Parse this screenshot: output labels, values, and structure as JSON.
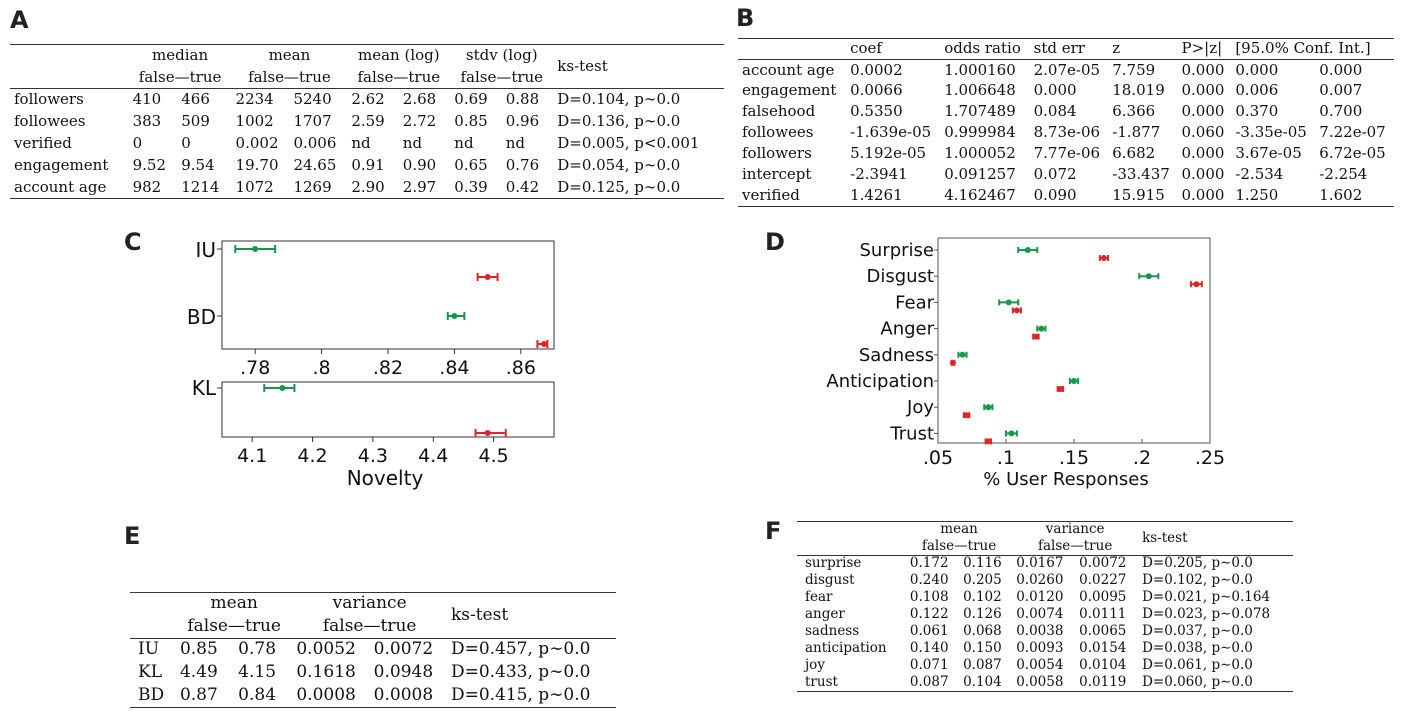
{
  "panels": {
    "A": "A",
    "B": "B",
    "C": "C",
    "D": "D",
    "E": "E",
    "F": "F"
  },
  "table_a": {
    "groups": [
      "median",
      "mean",
      "mean (log)",
      "stdv (log)"
    ],
    "sub": "false—true",
    "ks": "ks-test",
    "rows": [
      {
        "label": "followers",
        "v": [
          "410",
          "466",
          "2234",
          "5240",
          "2.62",
          "2.68",
          "0.69",
          "0.88"
        ],
        "ks": "D=0.104, p∼0.0"
      },
      {
        "label": "followees",
        "v": [
          "383",
          "509",
          "1002",
          "1707",
          "2.59",
          "2.72",
          "0.85",
          "0.96"
        ],
        "ks": "D=0.136, p∼0.0"
      },
      {
        "label": "verified",
        "v": [
          "0",
          "0",
          "0.002",
          "0.006",
          "nd",
          "nd",
          "nd",
          "nd"
        ],
        "ks": "D=0.005, p<0.001"
      },
      {
        "label": "engagement",
        "v": [
          "9.52",
          "9.54",
          "19.70",
          "24.65",
          "0.91",
          "0.90",
          "0.65",
          "0.76"
        ],
        "ks": "D=0.054, p∼0.0"
      },
      {
        "label": "account age",
        "v": [
          "982",
          "1214",
          "1072",
          "1269",
          "2.90",
          "2.97",
          "0.39",
          "0.42"
        ],
        "ks": "D=0.125, p∼0.0"
      }
    ]
  },
  "table_b": {
    "headers": [
      "coef",
      "odds ratio",
      "std err",
      "z",
      "P>|z|",
      "[95.0% Conf. Int.]"
    ],
    "rows": [
      {
        "label": "account age",
        "v": [
          "0.0002",
          "1.000160",
          "2.07e-05",
          "7.759",
          "0.000",
          "0.000",
          "0.000"
        ]
      },
      {
        "label": "engagement",
        "v": [
          "0.0066",
          "1.006648",
          "0.000",
          "18.019",
          "0.000",
          "0.006",
          "0.007"
        ]
      },
      {
        "label": "falsehood",
        "v": [
          "0.5350",
          "1.707489",
          "0.084",
          "6.366",
          "0.000",
          "0.370",
          "0.700"
        ]
      },
      {
        "label": "followees",
        "v": [
          "-1.639e-05",
          "0.999984",
          "8.73e-06",
          "-1.877",
          "0.060",
          "-3.35e-05",
          "7.22e-07"
        ]
      },
      {
        "label": "followers",
        "v": [
          "5.192e-05",
          "1.000052",
          "7.77e-06",
          "6.682",
          "0.000",
          "3.67e-05",
          "6.72e-05"
        ]
      },
      {
        "label": "intercept",
        "v": [
          "-2.3941",
          "0.091257",
          "0.072",
          "-33.437",
          "0.000",
          "-2.534",
          "-2.254"
        ]
      },
      {
        "label": "verified",
        "v": [
          "1.4261",
          "4.162467",
          "0.090",
          "15.915",
          "0.000",
          "1.250",
          "1.602"
        ]
      }
    ]
  },
  "table_e": {
    "groups": [
      "mean",
      "variance"
    ],
    "sub": "false—true",
    "ks": "ks-test",
    "rows": [
      {
        "label": "IU",
        "v": [
          "0.85",
          "0.78",
          "0.0052",
          "0.0072"
        ],
        "ks": "D=0.457, p∼0.0"
      },
      {
        "label": "KL",
        "v": [
          "4.49",
          "4.15",
          "0.1618",
          "0.0948"
        ],
        "ks": "D=0.433, p∼0.0"
      },
      {
        "label": "BD",
        "v": [
          "0.87",
          "0.84",
          "0.0008",
          "0.0008"
        ],
        "ks": "D=0.415, p∼0.0"
      }
    ]
  },
  "table_f": {
    "groups": [
      "mean",
      "variance"
    ],
    "sub": "false—true",
    "ks": "ks-test",
    "rows": [
      {
        "label": "surprise",
        "v": [
          "0.172",
          "0.116",
          "0.0167",
          "0.0072"
        ],
        "ks": "D=0.205, p∼0.0"
      },
      {
        "label": "disgust",
        "v": [
          "0.240",
          "0.205",
          "0.0260",
          "0.0227"
        ],
        "ks": "D=0.102, p∼0.0"
      },
      {
        "label": "fear",
        "v": [
          "0.108",
          "0.102",
          "0.0120",
          "0.0095"
        ],
        "ks": "D=0.021, p∼0.164"
      },
      {
        "label": "anger",
        "v": [
          "0.122",
          "0.126",
          "0.0074",
          "0.0111"
        ],
        "ks": "D=0.023, p∼0.078"
      },
      {
        "label": "sadness",
        "v": [
          "0.061",
          "0.068",
          "0.0038",
          "0.0065"
        ],
        "ks": "D=0.037, p∼0.0"
      },
      {
        "label": "anticipation",
        "v": [
          "0.140",
          "0.150",
          "0.0093",
          "0.0154"
        ],
        "ks": "D=0.038, p∼0.0"
      },
      {
        "label": "joy",
        "v": [
          "0.071",
          "0.087",
          "0.0054",
          "0.0104"
        ],
        "ks": "D=0.061, p∼0.0"
      },
      {
        "label": "trust",
        "v": [
          "0.087",
          "0.104",
          "0.0058",
          "0.0119"
        ],
        "ks": "D=0.060, p∼0.0"
      }
    ]
  },
  "colors": {
    "false": "#e0242b",
    "true": "#14984c"
  },
  "chart_data": [
    {
      "type": "scatter",
      "panel": "C-top",
      "categories": [
        "IU",
        "BD"
      ],
      "xlim": [
        0.77,
        0.87
      ],
      "ticks": [
        0.78,
        0.8,
        0.82,
        0.84,
        0.86
      ],
      "tick_labels": [
        ".78",
        ".8",
        ".82",
        ".84",
        ".86"
      ],
      "points": [
        {
          "cat": "IU",
          "group": "true",
          "x": 0.78,
          "lo": 0.774,
          "hi": 0.786
        },
        {
          "cat": "IU",
          "group": "false",
          "x": 0.85,
          "lo": 0.847,
          "hi": 0.853
        },
        {
          "cat": "BD",
          "group": "true",
          "x": 0.84,
          "lo": 0.838,
          "hi": 0.843
        },
        {
          "cat": "BD",
          "group": "false",
          "x": 0.867,
          "lo": 0.865,
          "hi": 0.868
        }
      ]
    },
    {
      "type": "scatter",
      "panel": "C-bottom",
      "categories": [
        "KL"
      ],
      "xlim": [
        4.05,
        4.6
      ],
      "ticks": [
        4.1,
        4.2,
        4.3,
        4.4,
        4.5
      ],
      "tick_labels": [
        "4.1",
        "4.2",
        "4.3",
        "4.4",
        "4.5"
      ],
      "xlabel": "Novelty",
      "points": [
        {
          "cat": "KL",
          "group": "true",
          "x": 4.15,
          "lo": 4.12,
          "hi": 4.17
        },
        {
          "cat": "KL",
          "group": "false",
          "x": 4.49,
          "lo": 4.47,
          "hi": 4.52
        }
      ]
    },
    {
      "type": "scatter",
      "panel": "D",
      "categories": [
        "Surprise",
        "Disgust",
        "Fear",
        "Anger",
        "Sadness",
        "Anticipation",
        "Joy",
        "Trust"
      ],
      "xlim": [
        0.05,
        0.25
      ],
      "ticks": [
        0.05,
        0.1,
        0.15,
        0.2,
        0.25
      ],
      "tick_labels": [
        ".05",
        ".1",
        ".15",
        ".2",
        ".25"
      ],
      "xlabel": "% User Responses",
      "series": [
        {
          "group": "true",
          "values": [
            0.116,
            0.205,
            0.102,
            0.126,
            0.068,
            0.15,
            0.087,
            0.104
          ],
          "err": [
            0.007,
            0.007,
            0.007,
            0.003,
            0.003,
            0.003,
            0.003,
            0.004
          ]
        },
        {
          "group": "false",
          "values": [
            0.172,
            0.24,
            0.108,
            0.122,
            0.061,
            0.14,
            0.071,
            0.087
          ],
          "err": [
            0.003,
            0.004,
            0.003,
            0.002,
            0.001,
            0.002,
            0.002,
            0.002
          ]
        }
      ]
    }
  ]
}
